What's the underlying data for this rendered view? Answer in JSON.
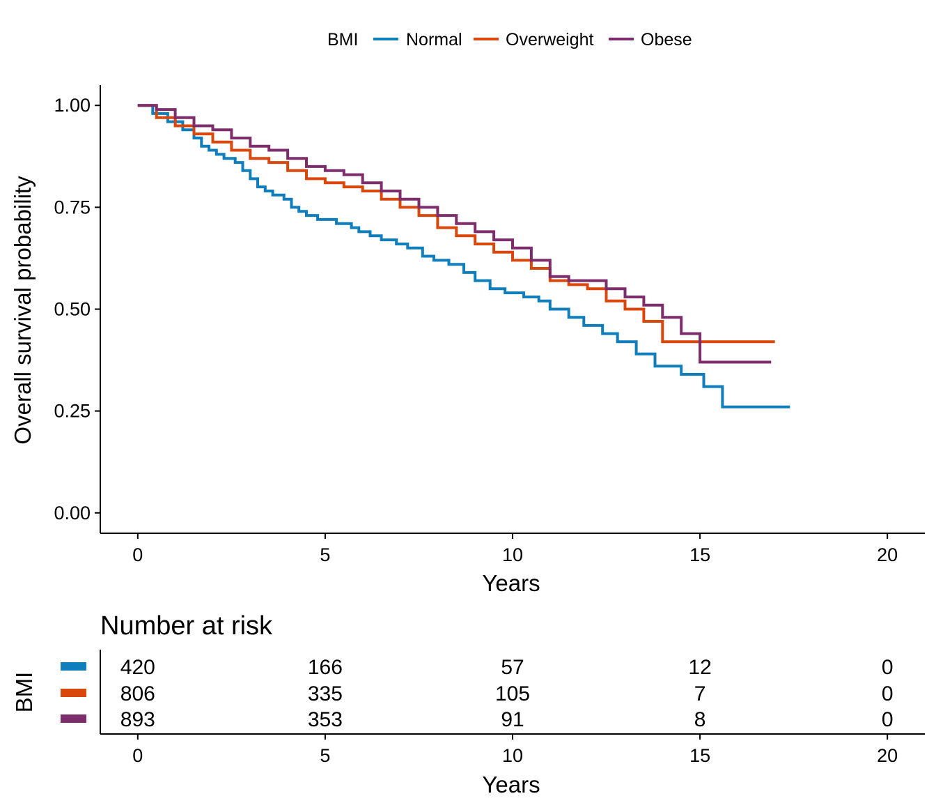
{
  "chart_data": {
    "type": "line",
    "step": true,
    "legend": {
      "title": "BMI",
      "position": "top"
    },
    "xlabel": "Years",
    "ylabel": "Overall survival probability",
    "xlim": [
      -1,
      21
    ],
    "ylim": [
      -0.05,
      1.05
    ],
    "xticks": [
      0,
      5,
      10,
      15,
      20
    ],
    "yticks": [
      0.0,
      0.25,
      0.5,
      0.75,
      1.0
    ],
    "ytick_labels": [
      "0.00",
      "0.25",
      "0.50",
      "0.75",
      "1.00"
    ],
    "grid": false,
    "series": [
      {
        "name": "Normal",
        "color": "#0F7EBA",
        "x": [
          0,
          0.4,
          0.8,
          1.2,
          1.5,
          1.7,
          1.9,
          2.1,
          2.3,
          2.6,
          2.8,
          3.0,
          3.2,
          3.4,
          3.6,
          3.9,
          4.1,
          4.3,
          4.5,
          4.8,
          5.0,
          5.3,
          5.7,
          5.9,
          6.2,
          6.5,
          6.9,
          7.2,
          7.6,
          7.9,
          8.3,
          8.7,
          9.0,
          9.4,
          9.8,
          10.3,
          10.7,
          11.0,
          11.5,
          11.9,
          12.4,
          12.8,
          13.3,
          13.8,
          14.5,
          15.1,
          15.6,
          17.4
        ],
        "y": [
          1.0,
          0.98,
          0.96,
          0.94,
          0.92,
          0.9,
          0.89,
          0.88,
          0.87,
          0.86,
          0.84,
          0.82,
          0.8,
          0.79,
          0.78,
          0.77,
          0.75,
          0.74,
          0.73,
          0.72,
          0.72,
          0.71,
          0.7,
          0.69,
          0.68,
          0.67,
          0.66,
          0.65,
          0.63,
          0.62,
          0.61,
          0.59,
          0.57,
          0.55,
          0.54,
          0.53,
          0.52,
          0.5,
          0.48,
          0.46,
          0.44,
          0.42,
          0.39,
          0.36,
          0.34,
          0.31,
          0.26,
          0.26
        ]
      },
      {
        "name": "Overweight",
        "color": "#D9470C",
        "x": [
          0,
          0.5,
          1.0,
          1.5,
          2.0,
          2.5,
          3.0,
          3.5,
          4.0,
          4.5,
          5.0,
          5.5,
          6.0,
          6.5,
          7.0,
          7.5,
          8.0,
          8.5,
          9.0,
          9.5,
          10.0,
          10.5,
          11.0,
          11.5,
          12.0,
          12.5,
          13.0,
          13.5,
          14.0,
          14.5,
          15.0,
          17.0
        ],
        "y": [
          1.0,
          0.97,
          0.95,
          0.93,
          0.91,
          0.89,
          0.87,
          0.86,
          0.84,
          0.82,
          0.81,
          0.8,
          0.79,
          0.77,
          0.75,
          0.73,
          0.7,
          0.68,
          0.66,
          0.64,
          0.62,
          0.6,
          0.57,
          0.56,
          0.55,
          0.52,
          0.5,
          0.47,
          0.42,
          0.42,
          0.42,
          0.42
        ]
      },
      {
        "name": "Obese",
        "color": "#7D2D6B",
        "x": [
          0,
          0.5,
          1.0,
          1.5,
          2.0,
          2.5,
          3.0,
          3.5,
          4.0,
          4.5,
          5.0,
          5.5,
          6.0,
          6.5,
          7.0,
          7.5,
          8.0,
          8.5,
          9.0,
          9.5,
          10.0,
          10.5,
          11.0,
          11.5,
          12.0,
          12.5,
          13.0,
          13.5,
          14.0,
          14.5,
          15.0,
          16.9
        ],
        "y": [
          1.0,
          0.99,
          0.97,
          0.95,
          0.94,
          0.92,
          0.9,
          0.89,
          0.87,
          0.85,
          0.84,
          0.83,
          0.81,
          0.79,
          0.77,
          0.75,
          0.73,
          0.71,
          0.69,
          0.67,
          0.65,
          0.62,
          0.58,
          0.57,
          0.57,
          0.55,
          0.53,
          0.51,
          0.48,
          0.44,
          0.37,
          0.37
        ]
      }
    ]
  },
  "risk_table": {
    "title": "Number at risk",
    "ylabel": "BMI",
    "xlabel": "Years",
    "times": [
      0,
      5,
      10,
      15,
      20
    ],
    "rows": [
      {
        "color": "#0F7EBA",
        "counts": [
          "420",
          "166",
          "57",
          "12",
          "0"
        ]
      },
      {
        "color": "#D9470C",
        "counts": [
          "806",
          "335",
          "105",
          "7",
          "0"
        ]
      },
      {
        "color": "#7D2D6B",
        "counts": [
          "893",
          "353",
          "91",
          "8",
          "0"
        ]
      }
    ]
  }
}
